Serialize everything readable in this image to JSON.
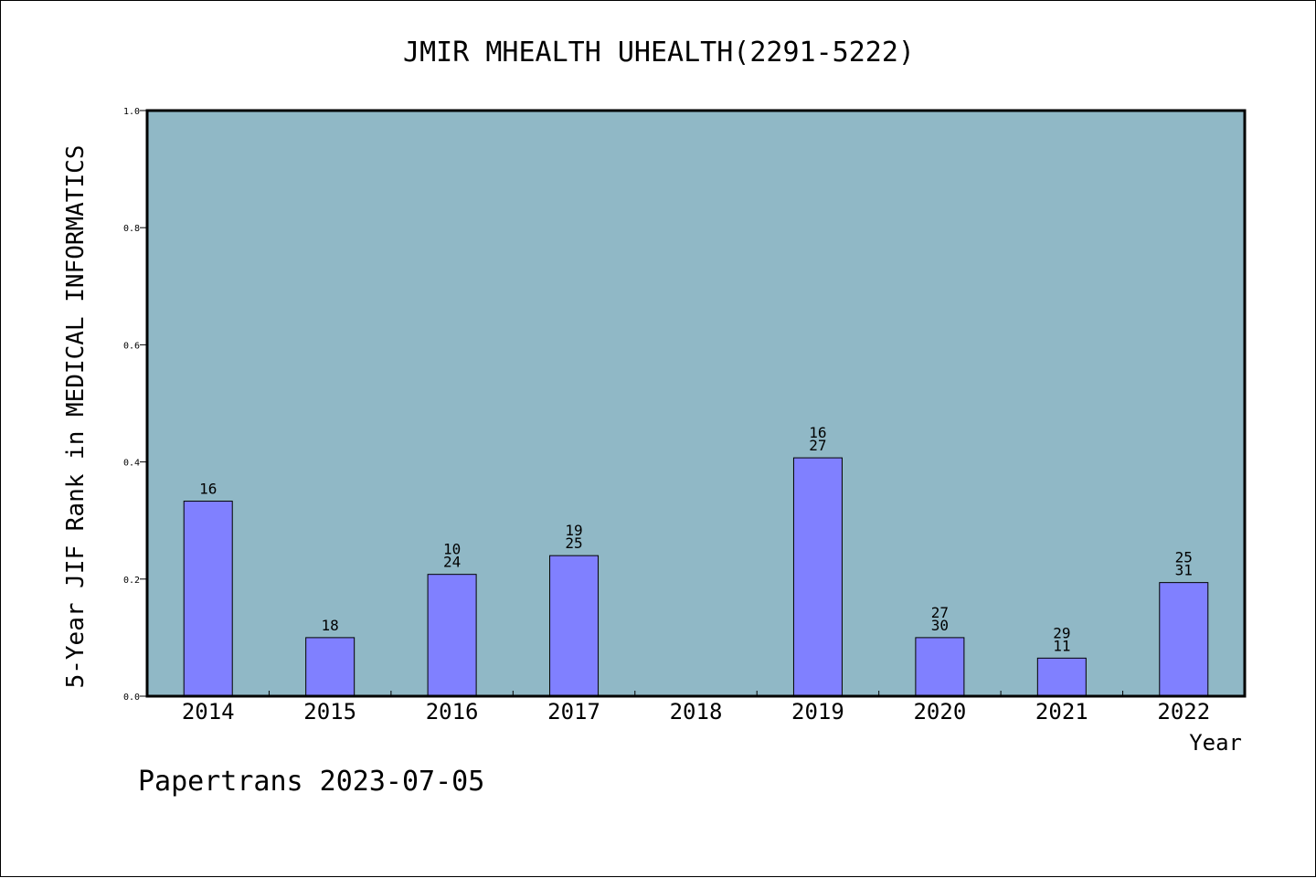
{
  "chart_data": {
    "type": "bar",
    "title": "JMIR MHEALTH UHEALTH(2291-5222)",
    "xlabel": "Year",
    "ylabel": "5-Year JIF Rank in MEDICAL INFORMATICS",
    "ylim": [
      0,
      1.0
    ],
    "yticks": [
      "0.0",
      "0.2",
      "0.4",
      "0.6",
      "0.8",
      "1.0"
    ],
    "categories": [
      "2014",
      "2015",
      "2016",
      "2017",
      "2018",
      "2019",
      "2020",
      "2021",
      "2022"
    ],
    "values": [
      0.333,
      0.1,
      0.208,
      0.24,
      null,
      0.407,
      0.1,
      0.065,
      0.194
    ],
    "bar_labels": [
      [
        "16"
      ],
      [
        "18"
      ],
      [
        "10",
        "24"
      ],
      [
        "19",
        "25"
      ],
      [],
      [
        "16",
        "27"
      ],
      [
        "27",
        "30"
      ],
      [
        "29",
        "11"
      ],
      [
        "25",
        "31"
      ]
    ],
    "grid": false,
    "colors": {
      "plot_bg": "#90b8c6",
      "bar": "#8080ff"
    }
  },
  "footer": "Papertrans 2023-07-05"
}
